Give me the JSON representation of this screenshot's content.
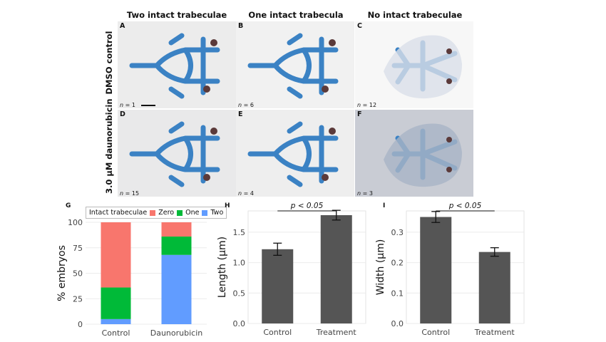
{
  "columns": [
    "Two intact trabeculae",
    "One intact trabecula",
    "No intact trabeculae"
  ],
  "rows": [
    "DMSO control",
    "3.0 μM daunorubicin"
  ],
  "panels": [
    {
      "letter": "A",
      "n_prefix": "n",
      "n_value": " = 1"
    },
    {
      "letter": "B",
      "n_prefix": "n",
      "n_value": " = 6"
    },
    {
      "letter": "C",
      "n_prefix": "n",
      "n_value": " = 12"
    },
    {
      "letter": "D",
      "n_prefix": "n",
      "n_value": " = 15"
    },
    {
      "letter": "E",
      "n_prefix": "n",
      "n_value": " = 4"
    },
    {
      "letter": "F",
      "n_prefix": "n",
      "n_value": " = 3"
    }
  ],
  "panel_G": {
    "letter": "G"
  },
  "panel_H": {
    "letter": "H",
    "significance": "p < 0.05"
  },
  "panel_I": {
    "letter": "I",
    "significance": "p < 0.05"
  },
  "legend": {
    "title": "Intact trabeculae",
    "items": [
      "Zero",
      "One",
      "Two"
    ]
  },
  "colors": {
    "zero": "#F8766D",
    "one": "#00BA38",
    "two": "#619CFF",
    "bar": "#555555",
    "cartilage": "#3b82c4",
    "bg_light": "#ececec",
    "bg_dark": "#d8d8dc"
  },
  "chart_data": [
    {
      "id": "G",
      "type": "bar",
      "stacked": true,
      "categories": [
        "Control",
        "Daunorubicin"
      ],
      "series": [
        {
          "name": "Two",
          "values": [
            5,
            68
          ]
        },
        {
          "name": "One",
          "values": [
            31,
            18
          ]
        },
        {
          "name": "Zero",
          "values": [
            64,
            14
          ]
        }
      ],
      "ylabel": "% embryos",
      "xlabel": "",
      "ylim": [
        0,
        100
      ],
      "yticks": [
        0,
        25,
        50,
        75,
        100
      ]
    },
    {
      "id": "H",
      "type": "bar",
      "categories": [
        "Control",
        "Treatment"
      ],
      "values": [
        1.22,
        1.78
      ],
      "errors": [
        0.1,
        0.08
      ],
      "ylabel": "Length (μm)",
      "xlabel": "",
      "ylim": [
        0,
        1.85
      ],
      "yticks": [
        0.0,
        0.5,
        1.0,
        1.5
      ],
      "yticklabels": [
        "0.0",
        "0.5",
        "1.0",
        "1.5"
      ]
    },
    {
      "id": "I",
      "type": "bar",
      "categories": [
        "Control",
        "Treatment"
      ],
      "values": [
        0.35,
        0.235
      ],
      "errors": [
        0.018,
        0.014
      ],
      "ylabel": "Width (μm)",
      "xlabel": "",
      "ylim": [
        0,
        0.37
      ],
      "yticks": [
        0.0,
        0.1,
        0.2,
        0.3
      ],
      "yticklabels": [
        "0.0",
        "0.1",
        "0.2",
        "0.3"
      ]
    }
  ]
}
